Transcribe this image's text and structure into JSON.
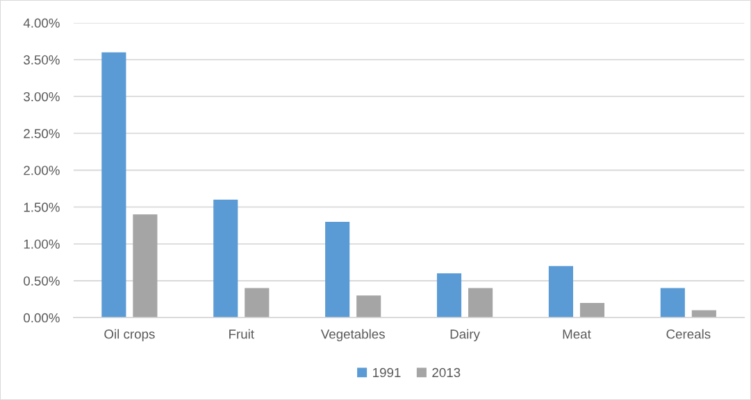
{
  "chart_data": {
    "type": "bar",
    "categories": [
      "Oil crops",
      "Fruit",
      "Vegetables",
      "Dairy",
      "Meat",
      "Cereals"
    ],
    "series": [
      {
        "name": "1991",
        "color": "#5b9bd5",
        "values": [
          3.6,
          1.6,
          1.3,
          0.6,
          0.7,
          0.4
        ]
      },
      {
        "name": "2013",
        "color": "#a5a5a5",
        "values": [
          1.4,
          0.4,
          0.3,
          0.4,
          0.2,
          0.1
        ]
      }
    ],
    "ylim": [
      0,
      4
    ],
    "yticks": [
      {
        "value": 0,
        "label": "0.00%"
      },
      {
        "value": 0.5,
        "label": "0.50%"
      },
      {
        "value": 1,
        "label": "1.00%"
      },
      {
        "value": 1.5,
        "label": "1.50%"
      },
      {
        "value": 2,
        "label": "2.00%"
      },
      {
        "value": 2.5,
        "label": "2.50%"
      },
      {
        "value": 3,
        "label": "3.00%"
      },
      {
        "value": 3.5,
        "label": "3.50%"
      },
      {
        "value": 4,
        "label": "4.00%"
      }
    ],
    "grid": "y",
    "legend": "bottom"
  }
}
